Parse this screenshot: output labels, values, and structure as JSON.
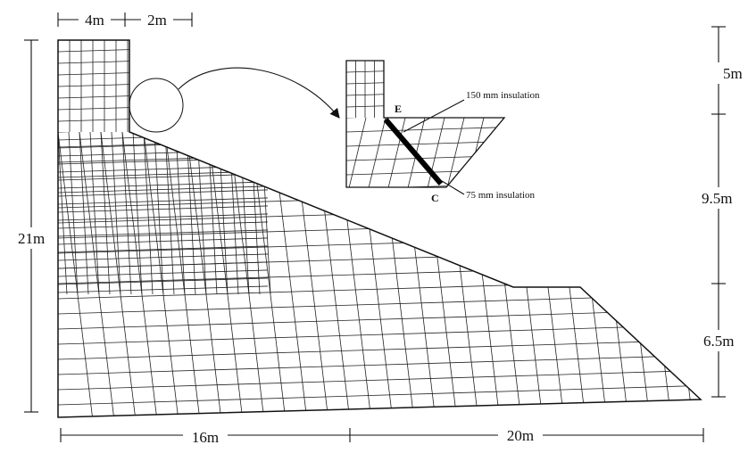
{
  "dimensions": {
    "top": [
      "4m",
      "2m"
    ],
    "left": "21m",
    "bottom": [
      "16m",
      "20m"
    ],
    "right": [
      "5m",
      "9.5m",
      "6.5m"
    ]
  },
  "inset": {
    "points": [
      "E",
      "C"
    ],
    "labels": [
      "150 mm insulation",
      "75 mm insulation"
    ]
  }
}
